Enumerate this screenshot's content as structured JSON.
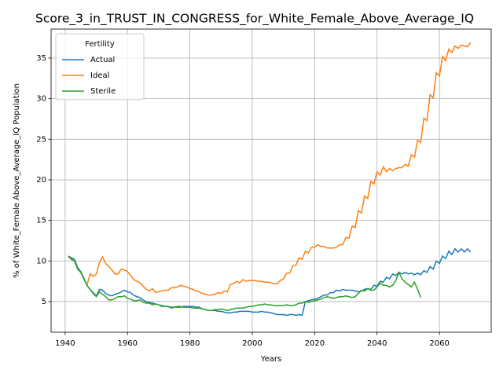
{
  "chart_data": {
    "type": "line",
    "title": "Score_3_in_TRUST_IN_CONGRESS_for_White_Female_Above_Average_IQ",
    "xlabel": "Years",
    "ylabel": "% of White_Female Above_Average_IQ Population",
    "legend_title": "Fertility",
    "legend": "upper left",
    "grid": true,
    "xlim": [
      1935.5,
      2076.6
    ],
    "ylim": [
      1.22,
      38.58
    ],
    "xticks": [
      1940,
      1960,
      1980,
      2000,
      2020,
      2040,
      2060
    ],
    "yticks": [
      5,
      10,
      15,
      20,
      25,
      30,
      35
    ],
    "x": [
      1941,
      1942,
      1943,
      1944,
      1945,
      1946,
      1947,
      1948,
      1949,
      1950,
      1951,
      1952,
      1953,
      1954,
      1955,
      1956,
      1957,
      1958,
      1959,
      1960,
      1961,
      1962,
      1963,
      1964,
      1965,
      1966,
      1967,
      1968,
      1969,
      1970,
      1971,
      1972,
      1973,
      1974,
      1975,
      1976,
      1977,
      1978,
      1979,
      1980,
      1981,
      1982,
      1983,
      1984,
      1985,
      1986,
      1987,
      1988,
      1989,
      1990,
      1991,
      1992,
      1993,
      1994,
      1995,
      1996,
      1997,
      1998,
      1999,
      2000,
      2001,
      2002,
      2003,
      2004,
      2005,
      2006,
      2007,
      2008,
      2009,
      2010,
      2011,
      2012,
      2013,
      2014,
      2015,
      2016,
      2017,
      2018,
      2019,
      2020,
      2021,
      2022,
      2023,
      2024,
      2025,
      2026,
      2027,
      2028,
      2029,
      2030,
      2031,
      2032,
      2033,
      2034,
      2035,
      2036,
      2037,
      2038,
      2039,
      2040,
      2041,
      2042,
      2043,
      2044,
      2045,
      2046,
      2047,
      2048,
      2049,
      2050,
      2051,
      2052,
      2053,
      2054,
      2055,
      2056,
      2057,
      2058,
      2059,
      2060,
      2061,
      2062,
      2063,
      2064,
      2065,
      2066,
      2067,
      2068,
      2069,
      2070
    ],
    "series": [
      {
        "name": "Actual",
        "color": "#1f77b4",
        "values": [
          10.6,
          10.4,
          10.2,
          9.2,
          8.7,
          7.9,
          7.0,
          6.5,
          6.1,
          5.7,
          6.5,
          6.4,
          6.0,
          5.8,
          5.7,
          5.9,
          6.0,
          6.2,
          6.4,
          6.2,
          6.1,
          5.8,
          5.6,
          5.5,
          5.2,
          5.0,
          4.9,
          4.8,
          4.7,
          4.6,
          4.5,
          4.4,
          4.4,
          4.3,
          4.3,
          4.3,
          4.3,
          4.4,
          4.4,
          4.4,
          4.4,
          4.3,
          4.3,
          4.1,
          4.0,
          3.9,
          3.9,
          3.9,
          3.8,
          3.8,
          3.7,
          3.6,
          3.6,
          3.7,
          3.7,
          3.8,
          3.8,
          3.8,
          3.8,
          3.7,
          3.7,
          3.7,
          3.8,
          3.7,
          3.7,
          3.6,
          3.5,
          3.4,
          3.4,
          3.4,
          3.3,
          3.4,
          3.4,
          3.3,
          3.4,
          3.3,
          5.0,
          5.1,
          5.2,
          5.3,
          5.4,
          5.6,
          5.8,
          5.8,
          6.1,
          6.1,
          6.4,
          6.3,
          6.5,
          6.4,
          6.4,
          6.4,
          6.3,
          6.2,
          6.3,
          6.5,
          6.6,
          6.5,
          7.0,
          6.9,
          7.5,
          7.4,
          8.0,
          7.8,
          8.4,
          8.2,
          8.6,
          8.4,
          8.6,
          8.4,
          8.5,
          8.3,
          8.5,
          8.3,
          8.8,
          8.6,
          9.3,
          9.0,
          10.0,
          9.7,
          10.6,
          10.3,
          11.2,
          10.8,
          11.5,
          11.1,
          11.5,
          11.1,
          11.5,
          11.1
        ]
      },
      {
        "name": "Ideal",
        "color": "#ff7f0e",
        "values": [
          10.6,
          10.2,
          10.0,
          9.0,
          8.6,
          7.8,
          7.0,
          8.4,
          8.1,
          8.4,
          9.8,
          10.5,
          9.7,
          9.3,
          8.9,
          8.4,
          8.4,
          9.0,
          8.9,
          8.7,
          8.2,
          7.7,
          7.5,
          7.3,
          6.9,
          6.5,
          6.3,
          6.6,
          6.1,
          6.2,
          6.3,
          6.4,
          6.4,
          6.7,
          6.7,
          6.8,
          7.0,
          6.9,
          6.8,
          6.6,
          6.5,
          6.3,
          6.2,
          6.0,
          5.9,
          5.8,
          5.8,
          5.9,
          6.1,
          6.0,
          6.3,
          6.2,
          7.1,
          7.2,
          7.5,
          7.3,
          7.7,
          7.5,
          7.6,
          7.6,
          7.6,
          7.5,
          7.5,
          7.4,
          7.4,
          7.3,
          7.2,
          7.2,
          7.6,
          7.8,
          8.5,
          8.5,
          9.4,
          9.5,
          10.4,
          10.2,
          11.2,
          11.0,
          11.7,
          11.7,
          12.0,
          11.8,
          11.8,
          11.6,
          11.6,
          11.6,
          11.7,
          12.0,
          12.0,
          12.9,
          12.8,
          14.3,
          14.1,
          16.2,
          15.9,
          18.0,
          17.7,
          19.8,
          19.5,
          21.0,
          20.6,
          21.6,
          21.0,
          21.4,
          21.1,
          21.4,
          21.5,
          21.5,
          21.9,
          21.7,
          23.1,
          22.8,
          24.9,
          24.6,
          27.6,
          27.3,
          30.5,
          30.1,
          33.2,
          32.8,
          35.2,
          34.7,
          36.1,
          35.7,
          36.5,
          36.2,
          36.6,
          36.5,
          36.4,
          36.9
        ]
      },
      {
        "name": "Sterile",
        "color": "#2ca02c",
        "values": [
          10.6,
          10.2,
          10.0,
          9.0,
          8.6,
          7.8,
          7.0,
          6.5,
          6.0,
          5.6,
          6.2,
          5.9,
          5.6,
          5.2,
          5.2,
          5.4,
          5.6,
          5.6,
          5.7,
          5.4,
          5.3,
          5.1,
          5.1,
          5.2,
          4.9,
          4.8,
          4.8,
          4.6,
          4.7,
          4.6,
          4.4,
          4.4,
          4.4,
          4.2,
          4.3,
          4.4,
          4.4,
          4.3,
          4.3,
          4.3,
          4.2,
          4.2,
          4.2,
          4.1,
          4.0,
          3.9,
          3.9,
          4.0,
          4.0,
          4.1,
          4.0,
          3.9,
          4.0,
          4.1,
          4.2,
          4.2,
          4.2,
          4.3,
          4.4,
          4.4,
          4.5,
          4.6,
          4.6,
          4.7,
          4.6,
          4.6,
          4.5,
          4.5,
          4.5,
          4.5,
          4.6,
          4.5,
          4.5,
          4.6,
          4.8,
          4.8,
          5.0,
          4.9,
          5.0,
          5.1,
          5.2,
          5.3,
          5.5,
          5.6,
          5.5,
          5.4,
          5.5,
          5.6,
          5.6,
          5.7,
          5.6,
          5.5,
          5.6,
          6.0,
          6.4,
          6.3,
          6.6,
          6.4,
          6.4,
          6.8,
          7.3,
          7.0,
          7.0,
          6.8,
          7.0,
          7.6,
          8.6,
          7.8,
          7.4,
          7.1,
          6.8,
          7.4,
          6.5,
          5.5,
          null,
          null,
          null,
          null,
          null,
          null,
          null,
          null,
          null,
          null,
          null,
          null,
          null,
          null,
          null,
          null
        ]
      }
    ]
  }
}
